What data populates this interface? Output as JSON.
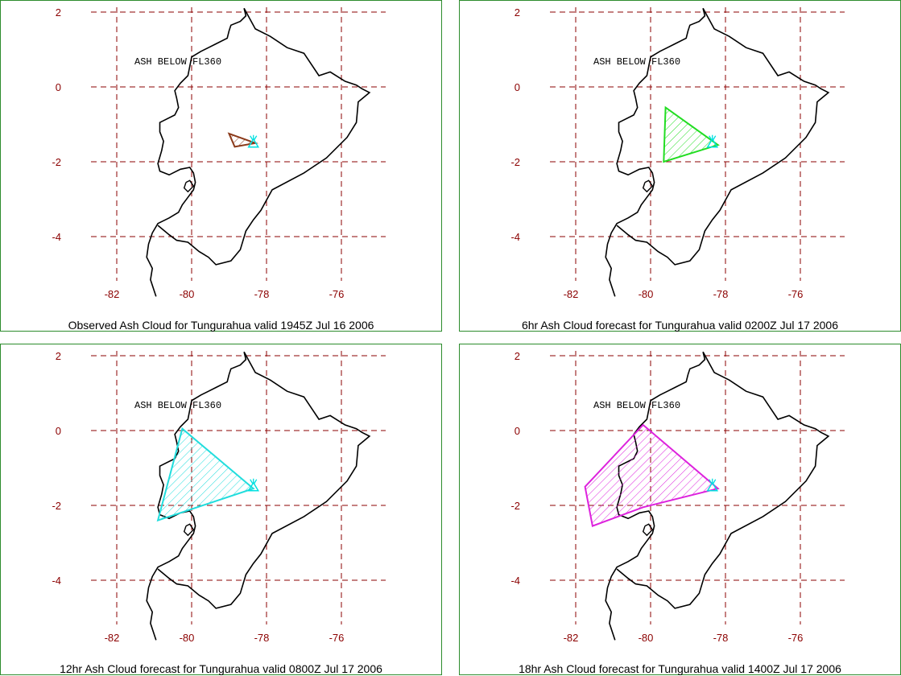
{
  "ash_label": "ASH BELOW FL360",
  "y_ticks": [
    "2",
    "0",
    "-2",
    "-4"
  ],
  "x_ticks": [
    "-82",
    "-80",
    "-78",
    "-76"
  ],
  "colors": {
    "grid": "#8b0000",
    "frame": "#2c8c2c",
    "coast": "#000000",
    "volcano_marker": "#00e0e0"
  },
  "panels": [
    {
      "caption": "Observed Ash Cloud for Tungurahua valid 1945Z Jul 16 2006",
      "cloud_color": "#8b3a1a",
      "cloud_vertices": [
        [
          -79.0,
          -1.25
        ],
        [
          -78.3,
          -1.5
        ],
        [
          -78.85,
          -1.6
        ]
      ]
    },
    {
      "caption": "6hr Ash Cloud forecast for Tungurahua valid 0200Z Jul 17 2006",
      "cloud_color": "#22dd22",
      "cloud_vertices": [
        [
          -79.6,
          -0.55
        ],
        [
          -78.2,
          -1.55
        ],
        [
          -79.65,
          -2.0
        ]
      ]
    },
    {
      "caption": "12hr Ash Cloud forecast for Tungurahua valid 0800Z Jul 17 2006",
      "cloud_color": "#22dddd",
      "cloud_vertices": [
        [
          -80.25,
          0.05
        ],
        [
          -78.35,
          -1.55
        ],
        [
          -80.9,
          -2.4
        ]
      ]
    },
    {
      "caption": "18hr Ash Cloud forecast for Tungurahua valid 1400Z Jul 17 2006",
      "cloud_color": "#dd22dd",
      "cloud_vertices": [
        [
          -80.2,
          0.15
        ],
        [
          -78.2,
          -1.55
        ],
        [
          -80.2,
          -2.05
        ],
        [
          -81.55,
          -2.55
        ],
        [
          -81.75,
          -1.5
        ]
      ]
    }
  ]
}
